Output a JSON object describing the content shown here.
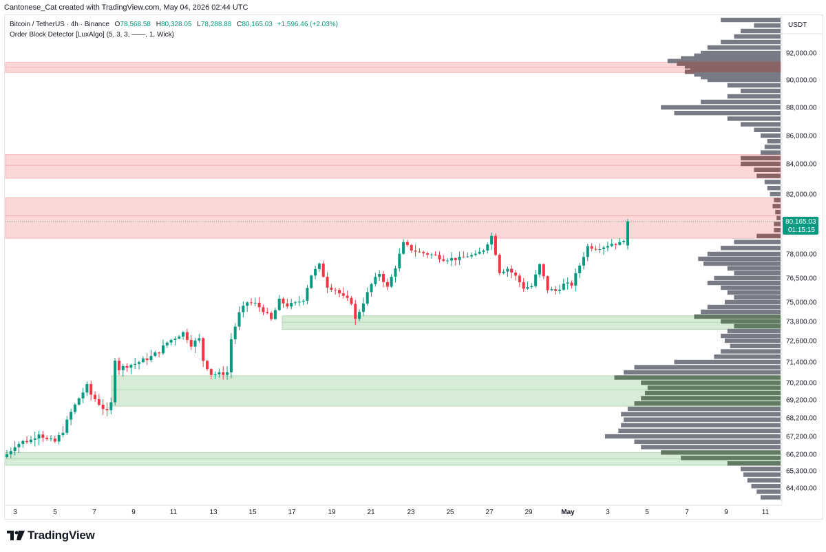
{
  "header": {
    "attribution": "Cantonese_Cat created with TradingView.com, May 04, 2026 02:44 UTC"
  },
  "legend": {
    "symbol": "Bitcoin / TetherUS · 4h · Binance",
    "o_label": "O",
    "o_value": "78,568.58",
    "h_label": "H",
    "h_value": "80,328.05",
    "l_label": "L",
    "l_value": "78,288.88",
    "c_label": "C",
    "c_value": "80,165.03",
    "change": "+1,596.46 (+2.03%)",
    "indicator": "Order Block Detector [LuxAlgo] (5, 3, 3, ——, 1, Wick)"
  },
  "axis": {
    "currency": "USDT",
    "price_label": "80,165.03",
    "countdown": "01:15:15"
  },
  "footer": {
    "brand": "TradingView"
  },
  "colors": {
    "up": "#089981",
    "down": "#f23645",
    "bear_zone": "#fbd7d7",
    "bull_zone": "#d7ecd6",
    "profile": "#787b86"
  },
  "chart_data": {
    "type": "candlestick",
    "title": "Bitcoin / TetherUS · 4h · Binance",
    "y_ticks": [
      "92,000.00",
      "90,000.00",
      "88,000.00",
      "86,000.00",
      "84,000.00",
      "82,000.00",
      "78,000.00",
      "76,500.00",
      "75,000.00",
      "73,800.00",
      "72,600.00",
      "71,400.00",
      "70,200.00",
      "69,200.00",
      "68,200.00",
      "67,200.00",
      "66,200.00",
      "65,300.00",
      "64,400.00"
    ],
    "x_ticks": [
      "3",
      "5",
      "7",
      "9",
      "11",
      "13",
      "15",
      "17",
      "19",
      "21",
      "23",
      "25",
      "27",
      "29",
      "May",
      "3",
      "5",
      "7",
      "9",
      "11"
    ],
    "last_price": 80165.03,
    "close_path": [
      [
        0,
        66200
      ],
      [
        2,
        66700
      ],
      [
        4,
        66900
      ],
      [
        6,
        67000
      ],
      [
        8,
        67400
      ],
      [
        10,
        67000
      ],
      [
        12,
        66900
      ],
      [
        14,
        67500
      ],
      [
        16,
        68500
      ],
      [
        18,
        69300
      ],
      [
        20,
        70000
      ],
      [
        21,
        69500
      ],
      [
        23,
        69000
      ],
      [
        25,
        68500
      ],
      [
        26,
        69000
      ],
      [
        27,
        71600
      ],
      [
        28,
        71000
      ],
      [
        30,
        71200
      ],
      [
        32,
        71300
      ],
      [
        34,
        71500
      ],
      [
        36,
        71700
      ],
      [
        38,
        72000
      ],
      [
        40,
        72500
      ],
      [
        42,
        72800
      ],
      [
        44,
        73100
      ],
      [
        46,
        72400
      ],
      [
        48,
        72700
      ],
      [
        49,
        71500
      ],
      [
        51,
        70700
      ],
      [
        53,
        70700
      ],
      [
        55,
        70800
      ],
      [
        56,
        72700
      ],
      [
        58,
        74300
      ],
      [
        60,
        75000
      ],
      [
        62,
        74900
      ],
      [
        64,
        74500
      ],
      [
        66,
        73900
      ],
      [
        68,
        75100
      ],
      [
        70,
        74800
      ],
      [
        72,
        74900
      ],
      [
        74,
        75200
      ],
      [
        76,
        76700
      ],
      [
        78,
        77300
      ],
      [
        80,
        76000
      ],
      [
        82,
        75800
      ],
      [
        84,
        75300
      ],
      [
        86,
        75000
      ],
      [
        87,
        73900
      ],
      [
        89,
        75000
      ],
      [
        91,
        76100
      ],
      [
        93,
        76800
      ],
      [
        95,
        75900
      ],
      [
        97,
        77200
      ],
      [
        99,
        78700
      ],
      [
        101,
        78300
      ],
      [
        103,
        78100
      ],
      [
        105,
        78000
      ],
      [
        107,
        77900
      ],
      [
        109,
        77700
      ],
      [
        111,
        77700
      ],
      [
        113,
        77700
      ],
      [
        115,
        77900
      ],
      [
        117,
        77900
      ],
      [
        119,
        78300
      ],
      [
        121,
        79200
      ],
      [
        123,
        76900
      ],
      [
        125,
        77100
      ],
      [
        127,
        76600
      ],
      [
        129,
        75900
      ],
      [
        131,
        76000
      ],
      [
        133,
        77300
      ],
      [
        135,
        75800
      ],
      [
        137,
        75700
      ],
      [
        139,
        76100
      ],
      [
        141,
        76100
      ],
      [
        143,
        77300
      ],
      [
        145,
        78500
      ],
      [
        147,
        78400
      ],
      [
        149,
        78500
      ],
      [
        151,
        78700
      ],
      [
        153,
        78700
      ],
      [
        154,
        79000
      ],
      [
        155,
        80165
      ]
    ],
    "x_candle_count": 156,
    "order_blocks": [
      {
        "type": "bearish",
        "top": 91300,
        "mid": 90950,
        "bottom": 90550
      },
      {
        "type": "bearish",
        "top": 84650,
        "mid": 83900,
        "bottom": 83050
      },
      {
        "type": "bearish",
        "top": 81750,
        "mid": 80550,
        "bottom": 79050
      },
      {
        "type": "bullish",
        "top": 74150,
        "mid": 73750,
        "bottom": 73300
      },
      {
        "type": "bullish",
        "top": 70600,
        "mid": 69800,
        "bottom": 68850
      },
      {
        "type": "bullish",
        "top": 66300,
        "mid": 65950,
        "bottom": 65600
      }
    ],
    "volume_profile_bins": [
      {
        "price": 93200,
        "vol": 0.45
      },
      {
        "price": 93000,
        "vol": 0.2
      },
      {
        "price": 92800,
        "vol": 0.3
      },
      {
        "price": 92600,
        "vol": 0.35
      },
      {
        "price": 92400,
        "vol": 0.45
      },
      {
        "price": 92200,
        "vol": 0.55
      },
      {
        "price": 92000,
        "vol": 0.6
      },
      {
        "price": 91800,
        "vol": 0.65
      },
      {
        "price": 91600,
        "vol": 0.75
      },
      {
        "price": 91400,
        "vol": 0.85
      },
      {
        "price": 91200,
        "vol": 0.78
      },
      {
        "price": 91000,
        "vol": 0.72
      },
      {
        "price": 90800,
        "vol": 0.68
      },
      {
        "price": 90600,
        "vol": 0.72
      },
      {
        "price": 90400,
        "vol": 0.65
      },
      {
        "price": 90200,
        "vol": 0.6
      },
      {
        "price": 90000,
        "vol": 0.55
      },
      {
        "price": 89600,
        "vol": 0.4
      },
      {
        "price": 89200,
        "vol": 0.3
      },
      {
        "price": 88800,
        "vol": 0.4
      },
      {
        "price": 88400,
        "vol": 0.6
      },
      {
        "price": 88000,
        "vol": 0.9
      },
      {
        "price": 87600,
        "vol": 0.8
      },
      {
        "price": 87200,
        "vol": 0.4
      },
      {
        "price": 86800,
        "vol": 0.3
      },
      {
        "price": 86400,
        "vol": 0.2
      },
      {
        "price": 86000,
        "vol": 0.15
      },
      {
        "price": 85600,
        "vol": 0.1
      },
      {
        "price": 85200,
        "vol": 0.12
      },
      {
        "price": 84800,
        "vol": 0.15
      },
      {
        "price": 84400,
        "vol": 0.3
      },
      {
        "price": 84000,
        "vol": 0.3
      },
      {
        "price": 83600,
        "vol": 0.2
      },
      {
        "price": 83200,
        "vol": 0.18
      },
      {
        "price": 82800,
        "vol": 0.12
      },
      {
        "price": 82400,
        "vol": 0.1
      },
      {
        "price": 82000,
        "vol": 0.08
      },
      {
        "price": 81600,
        "vol": 0.05
      },
      {
        "price": 81200,
        "vol": 0.06
      },
      {
        "price": 80800,
        "vol": 0.04
      },
      {
        "price": 80400,
        "vol": 0.03
      },
      {
        "price": 80000,
        "vol": 0.05
      },
      {
        "price": 79600,
        "vol": 0.05
      },
      {
        "price": 79200,
        "vol": 0.18
      },
      {
        "price": 78800,
        "vol": 0.35
      },
      {
        "price": 78400,
        "vol": 0.45
      },
      {
        "price": 78000,
        "vol": 0.55
      },
      {
        "price": 77700,
        "vol": 0.62
      },
      {
        "price": 77400,
        "vol": 0.58
      },
      {
        "price": 77100,
        "vol": 0.4
      },
      {
        "price": 76800,
        "vol": 0.35
      },
      {
        "price": 76500,
        "vol": 0.5
      },
      {
        "price": 76200,
        "vol": 0.55
      },
      {
        "price": 75900,
        "vol": 0.45
      },
      {
        "price": 75600,
        "vol": 0.4
      },
      {
        "price": 75300,
        "vol": 0.35
      },
      {
        "price": 75000,
        "vol": 0.42
      },
      {
        "price": 74700,
        "vol": 0.55
      },
      {
        "price": 74400,
        "vol": 0.6
      },
      {
        "price": 74100,
        "vol": 0.65
      },
      {
        "price": 73800,
        "vol": 0.45
      },
      {
        "price": 73500,
        "vol": 0.35
      },
      {
        "price": 73200,
        "vol": 0.4
      },
      {
        "price": 72900,
        "vol": 0.45
      },
      {
        "price": 72600,
        "vol": 0.42
      },
      {
        "price": 72300,
        "vol": 0.38
      },
      {
        "price": 72000,
        "vol": 0.45
      },
      {
        "price": 71700,
        "vol": 0.5
      },
      {
        "price": 71400,
        "vol": 0.8
      },
      {
        "price": 71100,
        "vol": 1.1
      },
      {
        "price": 70800,
        "vol": 1.18
      },
      {
        "price": 70500,
        "vol": 1.25
      },
      {
        "price": 70200,
        "vol": 1.05
      },
      {
        "price": 69900,
        "vol": 1.0
      },
      {
        "price": 69600,
        "vol": 1.02
      },
      {
        "price": 69300,
        "vol": 1.05
      },
      {
        "price": 69000,
        "vol": 1.1
      },
      {
        "price": 68700,
        "vol": 1.15
      },
      {
        "price": 68400,
        "vol": 1.2
      },
      {
        "price": 68100,
        "vol": 1.18
      },
      {
        "price": 67800,
        "vol": 1.2
      },
      {
        "price": 67500,
        "vol": 1.22
      },
      {
        "price": 67200,
        "vol": 1.32
      },
      {
        "price": 66900,
        "vol": 1.1
      },
      {
        "price": 66600,
        "vol": 1.05
      },
      {
        "price": 66300,
        "vol": 0.9
      },
      {
        "price": 66000,
        "vol": 0.75
      },
      {
        "price": 65700,
        "vol": 0.4
      },
      {
        "price": 65400,
        "vol": 0.3
      },
      {
        "price": 65100,
        "vol": 0.28
      },
      {
        "price": 64800,
        "vol": 0.25
      },
      {
        "price": 64500,
        "vol": 0.22
      },
      {
        "price": 64200,
        "vol": 0.18
      },
      {
        "price": 63900,
        "vol": 0.15
      }
    ]
  }
}
